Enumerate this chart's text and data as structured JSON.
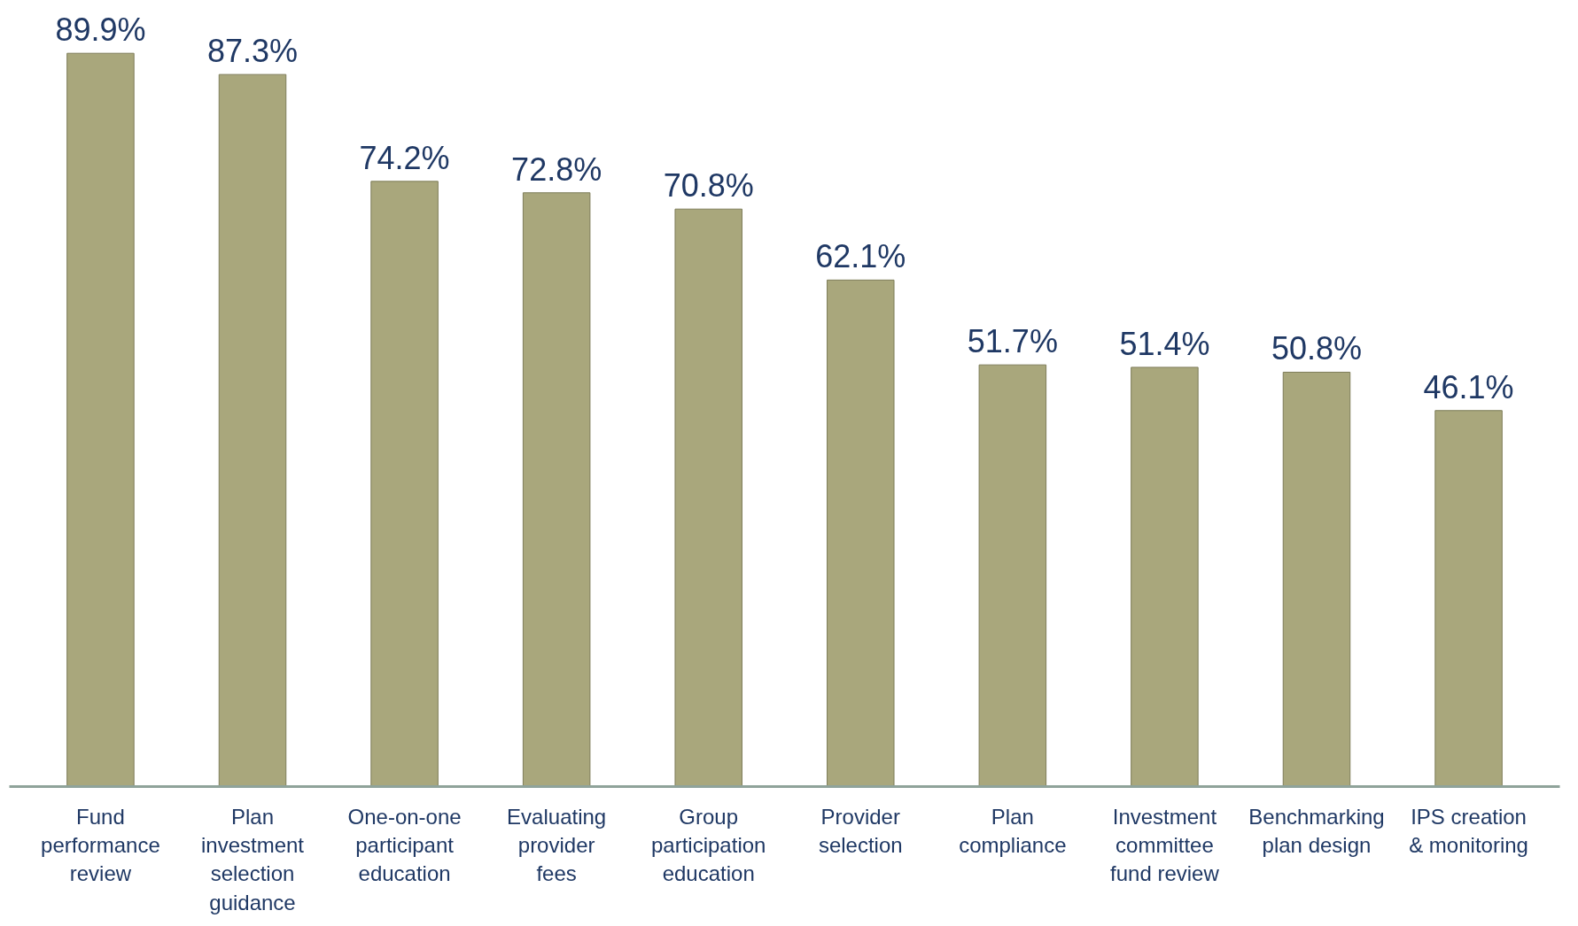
{
  "chart_data": {
    "type": "bar",
    "categories": [
      "Fund performance review",
      "Plan investment selection guidance",
      "One-on-one participant education",
      "Evaluating provider fees",
      "Group participation education",
      "Provider selection",
      "Plan compliance",
      "Investment committee fund review",
      "Benchmarking plan design",
      "IPS creation & monitoring"
    ],
    "values": [
      89.9,
      87.3,
      74.2,
      72.8,
      70.8,
      62.1,
      51.7,
      51.4,
      50.8,
      46.1
    ],
    "value_labels": [
      "89.9%",
      "87.3%",
      "74.2%",
      "72.8%",
      "70.8%",
      "62.1%",
      "51.7%",
      "51.4%",
      "50.8%",
      "46.1%"
    ],
    "color": "#a9a77c",
    "grid": false
  }
}
